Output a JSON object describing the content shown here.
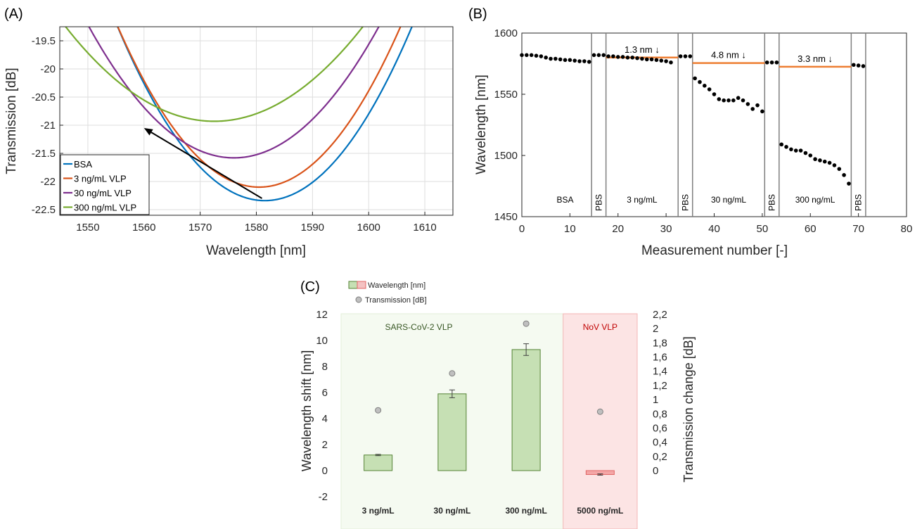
{
  "chart_data": [
    {
      "panel": "(A)",
      "type": "line",
      "xlabel": "Wavelength [nm]",
      "ylabel": "Transmission [dB]",
      "xlim": [
        1545,
        1615
      ],
      "ylim": [
        -22.6,
        -19.25
      ],
      "xticks": [
        1550,
        1560,
        1570,
        1580,
        1590,
        1600,
        1610
      ],
      "yticks": [
        -22.5,
        -22,
        -21.5,
        -21,
        -20.5,
        -20,
        -19.5
      ],
      "grid": true,
      "legend_position": "bottom-left",
      "series": [
        {
          "name": "BSA",
          "color": "#0072BD",
          "center": 1581.5,
          "min": -22.34,
          "curvature": 0.0045
        },
        {
          "name": "3 ng/mL VLP",
          "color": "#D95319",
          "center": 1580.5,
          "min": -22.1,
          "curvature": 0.0045
        },
        {
          "name": "30 ng/mL VLP",
          "color": "#7E2F8E",
          "center": 1576.0,
          "min": -21.58,
          "curvature": 0.0035
        },
        {
          "name": "300 ng/mL VLP",
          "color": "#77AC30",
          "center": 1572.5,
          "min": -20.93,
          "curvature": 0.0024
        }
      ],
      "arrow": {
        "from": [
          1581,
          -22.3
        ],
        "to": [
          1560,
          -21.05
        ]
      }
    },
    {
      "panel": "(B)",
      "type": "scatter",
      "xlabel": "Measurement number  [-]",
      "ylabel": "Wavelength [nm]",
      "xlim": [
        0,
        80
      ],
      "ylim": [
        1450,
        1600
      ],
      "xticks": [
        0,
        10,
        20,
        30,
        40,
        50,
        60,
        70,
        80
      ],
      "yticks": [
        1450,
        1500,
        1550,
        1600
      ],
      "grid": false,
      "separators": [
        14.5,
        17.5,
        32.5,
        35.5,
        50.5,
        53.5,
        68.5,
        71.5
      ],
      "segments": [
        {
          "label": "BSA",
          "x": 9,
          "rotated": false
        },
        {
          "label": "PBS",
          "x": 16,
          "rotated": true
        },
        {
          "label": "3 ng/mL",
          "x": 25,
          "rotated": false
        },
        {
          "label": "PBS",
          "x": 34,
          "rotated": true
        },
        {
          "label": "30 ng/mL",
          "x": 43,
          "rotated": false
        },
        {
          "label": "PBS",
          "x": 52,
          "rotated": true
        },
        {
          "label": "300 ng/mL",
          "x": 61,
          "rotated": false
        },
        {
          "label": "PBS",
          "x": 70,
          "rotated": true
        }
      ],
      "reference_lines": [
        {
          "x0": 17.5,
          "x1": 32.5,
          "y": 1580,
          "label": "1.3 nm ↓"
        },
        {
          "x0": 35.5,
          "x1": 50.5,
          "y": 1575.5,
          "label": "4.8 nm ↓"
        },
        {
          "x0": 53.5,
          "x1": 68.5,
          "y": 1572.5,
          "label": "3.3 nm ↓"
        }
      ],
      "points": [
        [
          0,
          1582
        ],
        [
          1,
          1582
        ],
        [
          2,
          1582
        ],
        [
          3,
          1581.5
        ],
        [
          4,
          1581
        ],
        [
          5,
          1580
        ],
        [
          6,
          1579
        ],
        [
          7,
          1579
        ],
        [
          8,
          1578.5
        ],
        [
          9,
          1578
        ],
        [
          10,
          1578
        ],
        [
          11,
          1577.5
        ],
        [
          12,
          1577
        ],
        [
          13,
          1577
        ],
        [
          14,
          1576.5
        ],
        [
          15,
          1582
        ],
        [
          16,
          1582
        ],
        [
          17,
          1582
        ],
        [
          18,
          1581
        ],
        [
          19,
          1581
        ],
        [
          20,
          1580.5
        ],
        [
          21,
          1580.5
        ],
        [
          22,
          1580
        ],
        [
          23,
          1580
        ],
        [
          24,
          1579.5
        ],
        [
          25,
          1579
        ],
        [
          26,
          1578.5
        ],
        [
          27,
          1578.5
        ],
        [
          28,
          1578
        ],
        [
          29,
          1577.5
        ],
        [
          30,
          1577
        ],
        [
          31,
          1576
        ],
        [
          33,
          1581
        ],
        [
          34,
          1581
        ],
        [
          35,
          1581
        ],
        [
          36,
          1563
        ],
        [
          37,
          1560
        ],
        [
          38,
          1557
        ],
        [
          39,
          1554
        ],
        [
          40,
          1550
        ],
        [
          41,
          1546
        ],
        [
          42,
          1545
        ],
        [
          43,
          1545
        ],
        [
          44,
          1545
        ],
        [
          45,
          1547
        ],
        [
          46,
          1545
        ],
        [
          47,
          1542
        ],
        [
          48,
          1538
        ],
        [
          49,
          1541
        ],
        [
          50,
          1536
        ],
        [
          51,
          1576
        ],
        [
          52,
          1576
        ],
        [
          53,
          1576
        ],
        [
          54,
          1509
        ],
        [
          55,
          1507
        ],
        [
          56,
          1505
        ],
        [
          57,
          1504
        ],
        [
          58,
          1504
        ],
        [
          59,
          1502
        ],
        [
          60,
          1500
        ],
        [
          61,
          1497
        ],
        [
          62,
          1496
        ],
        [
          63,
          1495
        ],
        [
          64,
          1494
        ],
        [
          65,
          1492
        ],
        [
          66,
          1489
        ],
        [
          67,
          1484
        ],
        [
          68,
          1477
        ],
        [
          69,
          1574
        ],
        [
          70,
          1573.5
        ],
        [
          71,
          1573
        ]
      ]
    },
    {
      "panel": "(C)",
      "type": "bar",
      "categories": [
        "3 ng/mL",
        "30 ng/mL",
        "300 ng/mL",
        "5000 ng/mL"
      ],
      "ylabel": "Wavelength shift [nm]",
      "y2label": "Transmission change [dB]",
      "ylim": [
        -2,
        12
      ],
      "y2lim": [
        0,
        2.2
      ],
      "yticks": [
        -2,
        0,
        2,
        4,
        6,
        8,
        10,
        12
      ],
      "y2ticks": [
        "0",
        "0,2",
        "0,4",
        "0,6",
        "0,8",
        "1",
        "1,2",
        "1,4",
        "1,6",
        "1,8",
        "2",
        "2,2"
      ],
      "y2tick_values": [
        0,
        0.2,
        0.4,
        0.6,
        0.8,
        1.0,
        1.2,
        1.4,
        1.6,
        1.8,
        2.0,
        2.2
      ],
      "legend": [
        "Wavelength [nm]",
        "Transmission [dB]"
      ],
      "regions": [
        {
          "label": "SARS-CoV-2 VLP",
          "from": 0,
          "to": 3,
          "color": "#f5faf1",
          "text_color": "#375623"
        },
        {
          "label": "NoV VLP",
          "from": 3,
          "to": 4,
          "color": "#fce4e4",
          "text_color": "#c00000"
        }
      ],
      "series": [
        {
          "name": "Wavelength [nm]",
          "values": [
            1.2,
            5.9,
            9.3,
            -0.3
          ],
          "errors": [
            0.05,
            0.3,
            0.45,
            0.05
          ],
          "colors": [
            "#c6e0b4",
            "#c6e0b4",
            "#c6e0b4",
            "#f4a6a6"
          ]
        },
        {
          "name": "Transmission [dB]",
          "values": [
            0.85,
            1.37,
            2.07,
            0.83
          ]
        }
      ]
    }
  ]
}
